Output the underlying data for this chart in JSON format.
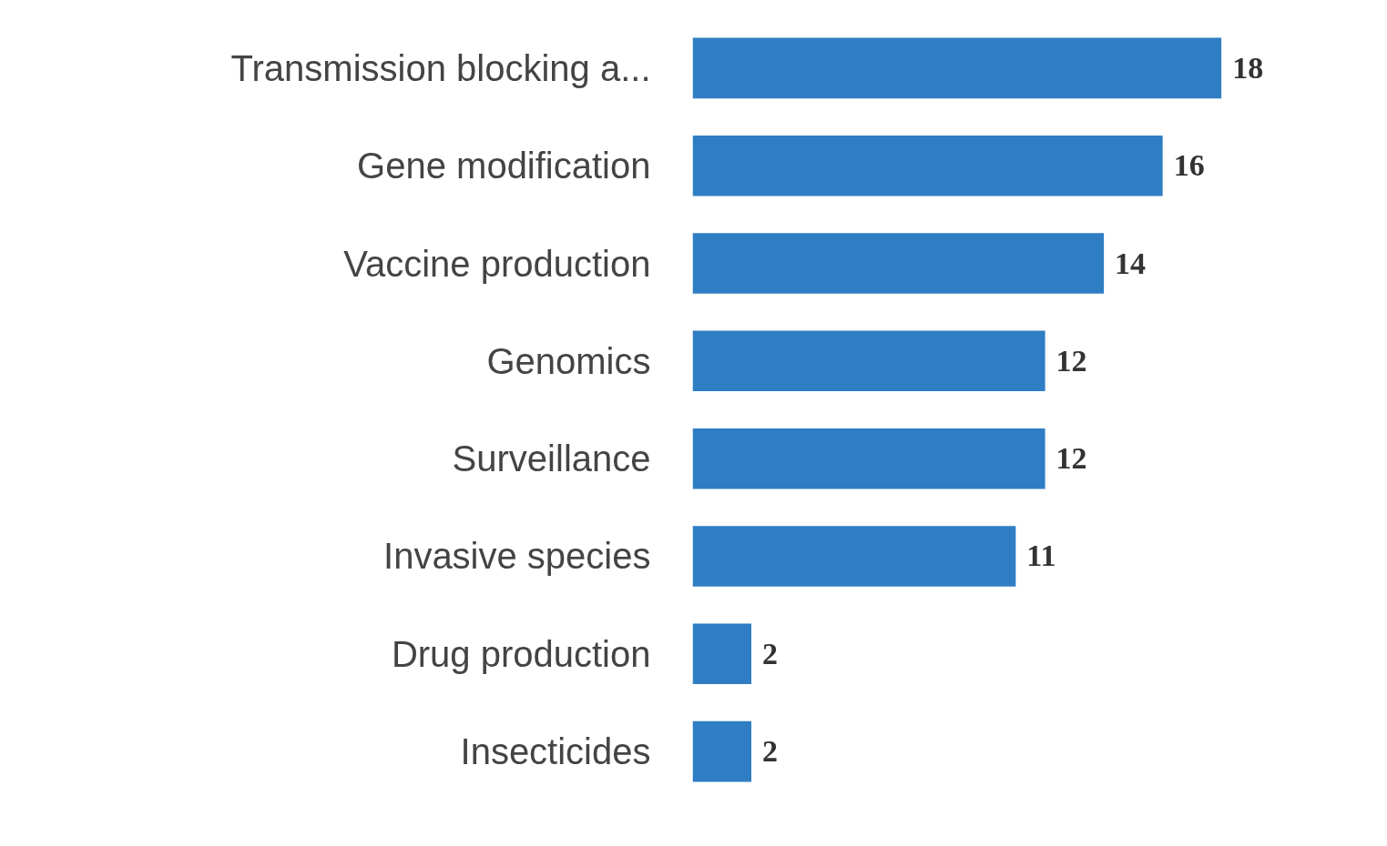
{
  "chart_data": {
    "type": "bar",
    "orientation": "horizontal",
    "data_labels": true,
    "grid": false,
    "categories": [
      "Transmission blocking a...",
      "Gene modification",
      "Vaccine production",
      "Genomics",
      "Surveillance",
      "Invasive species",
      "Drug production",
      "Insecticides"
    ],
    "values": [
      18,
      16,
      14,
      12,
      12,
      11,
      2,
      2
    ],
    "color": "#2f7ec4"
  }
}
